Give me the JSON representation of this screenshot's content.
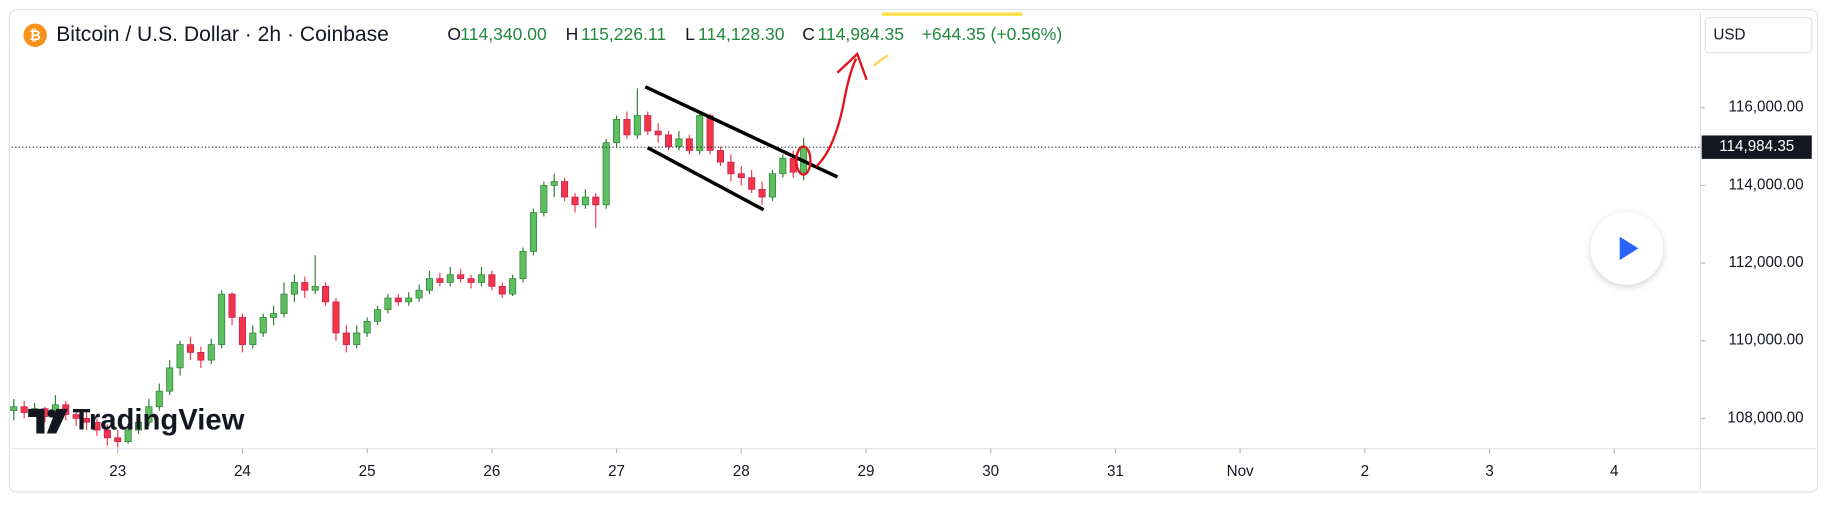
{
  "chart_data": {
    "type": "candlestick",
    "header": {
      "symbol": "Bitcoin / U.S. Dollar · 2h · Coinbase",
      "items": [
        {
          "key": "O",
          "label": "114,340.00"
        },
        {
          "key": "H",
          "label": "115,226.11"
        },
        {
          "key": "L",
          "label": "114,128.30"
        },
        {
          "key": "C",
          "label": "114,984.35"
        }
      ],
      "change": "+644.35 (+0.56%)"
    },
    "currency": "USD",
    "brand": "TradingView",
    "last_price_label": "114,984.35",
    "up_color": "#5cbf60",
    "down_color": "#f23645",
    "categories": [
      null,
      null,
      null,
      null,
      null,
      null,
      null,
      null,
      null,
      null,
      null,
      null,
      null,
      null,
      null,
      null,
      null,
      null,
      null,
      null,
      null,
      null,
      null,
      null,
      null,
      null,
      null,
      null,
      null,
      null,
      null,
      null,
      null,
      null,
      null,
      null,
      null,
      null,
      null,
      null,
      null,
      null,
      null,
      null,
      null,
      null,
      null,
      null,
      null,
      null,
      null,
      null,
      null,
      null,
      null,
      null,
      null,
      null,
      null,
      null,
      null,
      null,
      null,
      null,
      null,
      null,
      null,
      null,
      null,
      null,
      null,
      null,
      null,
      null,
      null,
      null,
      null
    ],
    "ohlc": {
      "open": [
        108200,
        108300,
        108150,
        108250,
        108050,
        108350,
        108100,
        108000,
        107900,
        107700,
        107500,
        107400,
        107700,
        107900,
        108300,
        108700,
        109300,
        109900,
        109700,
        109500,
        109900,
        111200,
        110600,
        109900,
        110200,
        110600,
        110700,
        111200,
        111500,
        111300,
        111400,
        111000,
        110200,
        109900,
        110200,
        110500,
        110800,
        111100,
        111000,
        111100,
        111300,
        111600,
        111500,
        111700,
        111600,
        111500,
        111700,
        111400,
        111200,
        111600,
        112300,
        113300,
        114000,
        114100,
        113700,
        113500,
        113700,
        113500,
        115100,
        115700,
        115300,
        115800,
        115400,
        115300,
        115000,
        115200,
        114900,
        115800,
        114900,
        114600,
        114300,
        114200,
        113900,
        113700,
        114300,
        114700,
        114340
      ],
      "high": [
        108500,
        108450,
        108400,
        108300,
        108600,
        108450,
        108250,
        108150,
        108000,
        107850,
        107700,
        107850,
        108050,
        108500,
        108900,
        109500,
        110000,
        110100,
        109850,
        110050,
        111300,
        111250,
        110700,
        110400,
        110700,
        110900,
        111500,
        111700,
        111650,
        112200,
        111500,
        111100,
        110400,
        110400,
        110600,
        110900,
        111200,
        111200,
        111250,
        111450,
        111800,
        111750,
        111900,
        111850,
        111700,
        111900,
        111800,
        111500,
        111700,
        112400,
        113400,
        114100,
        114300,
        114200,
        113800,
        113900,
        113800,
        115200,
        115800,
        115900,
        116500,
        115900,
        115600,
        115400,
        115400,
        115300,
        115900,
        115850,
        115000,
        114800,
        114500,
        114400,
        114100,
        114400,
        114800,
        114900,
        115226.11
      ],
      "low": [
        107950,
        108000,
        108050,
        107900,
        107950,
        107950,
        107800,
        107700,
        107550,
        107300,
        107250,
        107350,
        107600,
        107800,
        108200,
        108600,
        109100,
        109500,
        109300,
        109400,
        109800,
        110400,
        109700,
        109800,
        110100,
        110400,
        110600,
        111000,
        111100,
        111200,
        110900,
        110000,
        109700,
        109800,
        110100,
        110400,
        110700,
        110900,
        110900,
        111000,
        111200,
        111400,
        111400,
        111500,
        111350,
        111400,
        111300,
        111100,
        111150,
        111500,
        112200,
        113200,
        113700,
        113600,
        113300,
        113400,
        112900,
        113400,
        115000,
        115200,
        115200,
        115300,
        115100,
        114900,
        114900,
        114800,
        114800,
        114800,
        114500,
        114100,
        114000,
        113800,
        113500,
        113600,
        114200,
        114200,
        114128.3
      ],
      "close": [
        108300,
        108150,
        108250,
        108050,
        108350,
        108100,
        108000,
        107900,
        107700,
        107500,
        107400,
        107700,
        107900,
        108300,
        108700,
        109300,
        109900,
        109700,
        109500,
        109900,
        111200,
        110600,
        109900,
        110200,
        110600,
        110700,
        111200,
        111500,
        111300,
        111400,
        111000,
        110200,
        109900,
        110200,
        110500,
        110800,
        111100,
        111000,
        111100,
        111300,
        111600,
        111500,
        111700,
        111600,
        111500,
        111700,
        111400,
        111200,
        111600,
        112300,
        113300,
        114000,
        114100,
        113700,
        113500,
        113700,
        113500,
        115100,
        115700,
        115300,
        115800,
        115400,
        115300,
        115000,
        115200,
        114900,
        115800,
        114900,
        114600,
        114300,
        114200,
        113900,
        113700,
        114300,
        114700,
        114340,
        114984.35
      ]
    },
    "xlim": [
      -0.2,
      162.3
    ],
    "xticks": [
      {
        "value": 10,
        "label": "23"
      },
      {
        "value": 22,
        "label": "24"
      },
      {
        "value": 34,
        "label": "25"
      },
      {
        "value": 46,
        "label": "26"
      },
      {
        "value": 58,
        "label": "27"
      },
      {
        "value": 70,
        "label": "28"
      },
      {
        "value": 82,
        "label": "29"
      },
      {
        "value": 94,
        "label": "30"
      },
      {
        "value": 106,
        "label": "31"
      },
      {
        "value": 118,
        "label": "Nov"
      },
      {
        "value": 130,
        "label": "2"
      },
      {
        "value": 142,
        "label": "3"
      },
      {
        "value": 154,
        "label": "4"
      }
    ],
    "ylim": [
      107220,
      118470
    ],
    "yticks": [
      {
        "value": 108000,
        "label": "108,000.00"
      },
      {
        "value": 110000,
        "label": "110,000.00"
      },
      {
        "value": 112000,
        "label": "112,000.00"
      },
      {
        "value": 114000,
        "label": "114,000.00"
      },
      {
        "value": 116000,
        "label": "116,000.00"
      }
    ],
    "grid": false
  }
}
